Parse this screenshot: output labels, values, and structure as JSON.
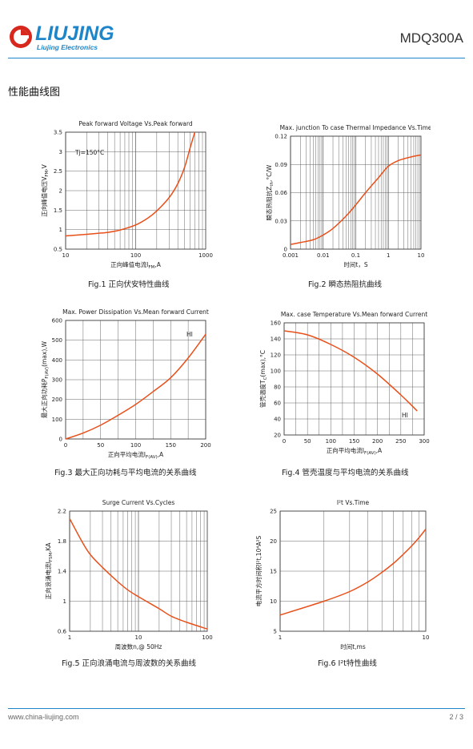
{
  "header": {
    "brand": "LIUJING",
    "brand_sub": "Liujing  Electronics",
    "model": "MDQ300A"
  },
  "section_title": "性能曲线图",
  "footer": {
    "url": "www.china-liujing.com",
    "page": "2 / 3"
  },
  "colors": {
    "curve": "#e8501a",
    "accent": "#1e86c8",
    "grid": "#555555"
  },
  "chart_data": [
    {
      "id": "fig1",
      "type": "line",
      "title": "Peak forward Voltage Vs.Peak forward",
      "caption": "Fig.1 正向伏安特性曲线",
      "xlabel": "正向峰值电流I",
      "xlabel_sub": "FM",
      "xlabel_unit": ",A",
      "ylabel": "正向峰值电压V",
      "ylabel_sub": "FM",
      "ylabel_unit": ",V",
      "xscale": "log",
      "xlim": [
        10,
        1000
      ],
      "ylim": [
        0.5,
        3.5
      ],
      "xticks": [
        "10",
        "100",
        "1000"
      ],
      "yticks": [
        "0.5",
        "1",
        "1.5",
        "2",
        "2.5",
        "3",
        "3.5"
      ],
      "annotation": "Tj=150°C",
      "x": [
        10,
        20,
        40,
        60,
        100,
        150,
        200,
        300,
        400,
        500,
        600,
        700
      ],
      "y": [
        0.84,
        0.88,
        0.93,
        0.99,
        1.12,
        1.3,
        1.48,
        1.82,
        2.18,
        2.6,
        3.1,
        3.5
      ]
    },
    {
      "id": "fig2",
      "type": "line",
      "title": "Max. junction To case Thermal Impedance Vs.Time",
      "caption": "Fig.2 瞬态热阻抗曲线",
      "xlabel": "时间t，S",
      "ylabel": "瞬态热阻抗Z",
      "ylabel_sub": "th",
      "ylabel_unit": ",°C/W",
      "xscale": "log",
      "xlim": [
        0.001,
        10
      ],
      "ylim": [
        0,
        0.12
      ],
      "xticks": [
        "0.001",
        "0.01",
        "0.1",
        "1",
        "10"
      ],
      "yticks": [
        "0",
        "0.03",
        "0.06",
        "0.09",
        "0.12"
      ],
      "x": [
        0.001,
        0.002,
        0.005,
        0.01,
        0.02,
        0.05,
        0.1,
        0.2,
        0.5,
        1,
        2,
        5,
        10
      ],
      "y": [
        0.005,
        0.007,
        0.01,
        0.015,
        0.022,
        0.035,
        0.047,
        0.06,
        0.076,
        0.088,
        0.094,
        0.098,
        0.1
      ]
    },
    {
      "id": "fig3",
      "type": "line",
      "title": "Max. Power Dissipation Vs.Mean forward Current",
      "caption": "Fig.3 最大正向功耗与平均电流的关系曲线",
      "xlabel": "正向平均电流I",
      "xlabel_sub": "F(AV)",
      "xlabel_unit": ",A",
      "ylabel": "最大正向功耗P",
      "ylabel_sub": "F(AV)",
      "ylabel_unit": "(max),W",
      "xscale": "linear",
      "xlim": [
        0,
        200
      ],
      "ylim": [
        0,
        600
      ],
      "xticks": [
        "0",
        "50",
        "100",
        "150",
        "200"
      ],
      "yticks": [
        "0",
        "100",
        "200",
        "300",
        "400",
        "500",
        "600"
      ],
      "annotation": "HI",
      "x": [
        0,
        25,
        50,
        75,
        100,
        125,
        150,
        175,
        200
      ],
      "y": [
        0,
        30,
        70,
        120,
        175,
        240,
        310,
        410,
        530
      ]
    },
    {
      "id": "fig4",
      "type": "line",
      "title": "Max. case Temperature Vs.Mean forward Current",
      "caption": "Fig.4 管壳温度与平均电流的关系曲线",
      "xlabel": "正向平均电流I",
      "xlabel_sub": "F(AV)",
      "xlabel_unit": ",A",
      "ylabel": "管壳温度T",
      "ylabel_sub": "C",
      "ylabel_unit": "(max),°C",
      "xscale": "linear",
      "xlim": [
        0,
        300
      ],
      "ylim": [
        20,
        160
      ],
      "xticks": [
        "0",
        "50",
        "100",
        "150",
        "200",
        "250",
        "300"
      ],
      "yticks": [
        "20",
        "40",
        "60",
        "80",
        "100",
        "120",
        "140",
        "160"
      ],
      "annotation": "HI",
      "x": [
        0,
        50,
        100,
        150,
        200,
        250,
        285
      ],
      "y": [
        150,
        145,
        133,
        117,
        96,
        70,
        50
      ]
    },
    {
      "id": "fig5",
      "type": "line",
      "title": "Surge Current Vs.Cycles",
      "caption": "Fig.5 正向浪涌电流与周波数的关系曲线",
      "xlabel": "周波数n,@ 50Hz",
      "ylabel": "正向浪涌电流I",
      "ylabel_sub": "FSM",
      "ylabel_unit": ",KA",
      "xscale": "log",
      "xlim": [
        1,
        100
      ],
      "ylim": [
        0.6,
        2.2
      ],
      "xticks": [
        "1",
        "10",
        "100"
      ],
      "yticks": [
        "0.6",
        "1",
        "1.4",
        "1.8",
        "2.2"
      ],
      "x": [
        1,
        1.5,
        2,
        3,
        5,
        7,
        10,
        20,
        30,
        50,
        100
      ],
      "y": [
        2.1,
        1.8,
        1.62,
        1.45,
        1.26,
        1.15,
        1.06,
        0.9,
        0.8,
        0.72,
        0.63
      ]
    },
    {
      "id": "fig6",
      "type": "line",
      "title": "I²t  Vs.Time",
      "caption": "Fig.6 I²t特性曲线",
      "xlabel": "时间t,ms",
      "ylabel": "电流平方时间积I²t,10⁴A²S",
      "xscale": "log",
      "xlim": [
        1,
        10
      ],
      "ylim": [
        5,
        25
      ],
      "xticks": [
        "1",
        "10"
      ],
      "yticks": [
        "5",
        "10",
        "15",
        "20",
        "25"
      ],
      "x": [
        1,
        2,
        3,
        4,
        5,
        6,
        7,
        8,
        9,
        10
      ],
      "y": [
        7.7,
        10,
        11.6,
        13.2,
        14.8,
        16.3,
        17.8,
        19.2,
        20.6,
        22
      ]
    }
  ]
}
